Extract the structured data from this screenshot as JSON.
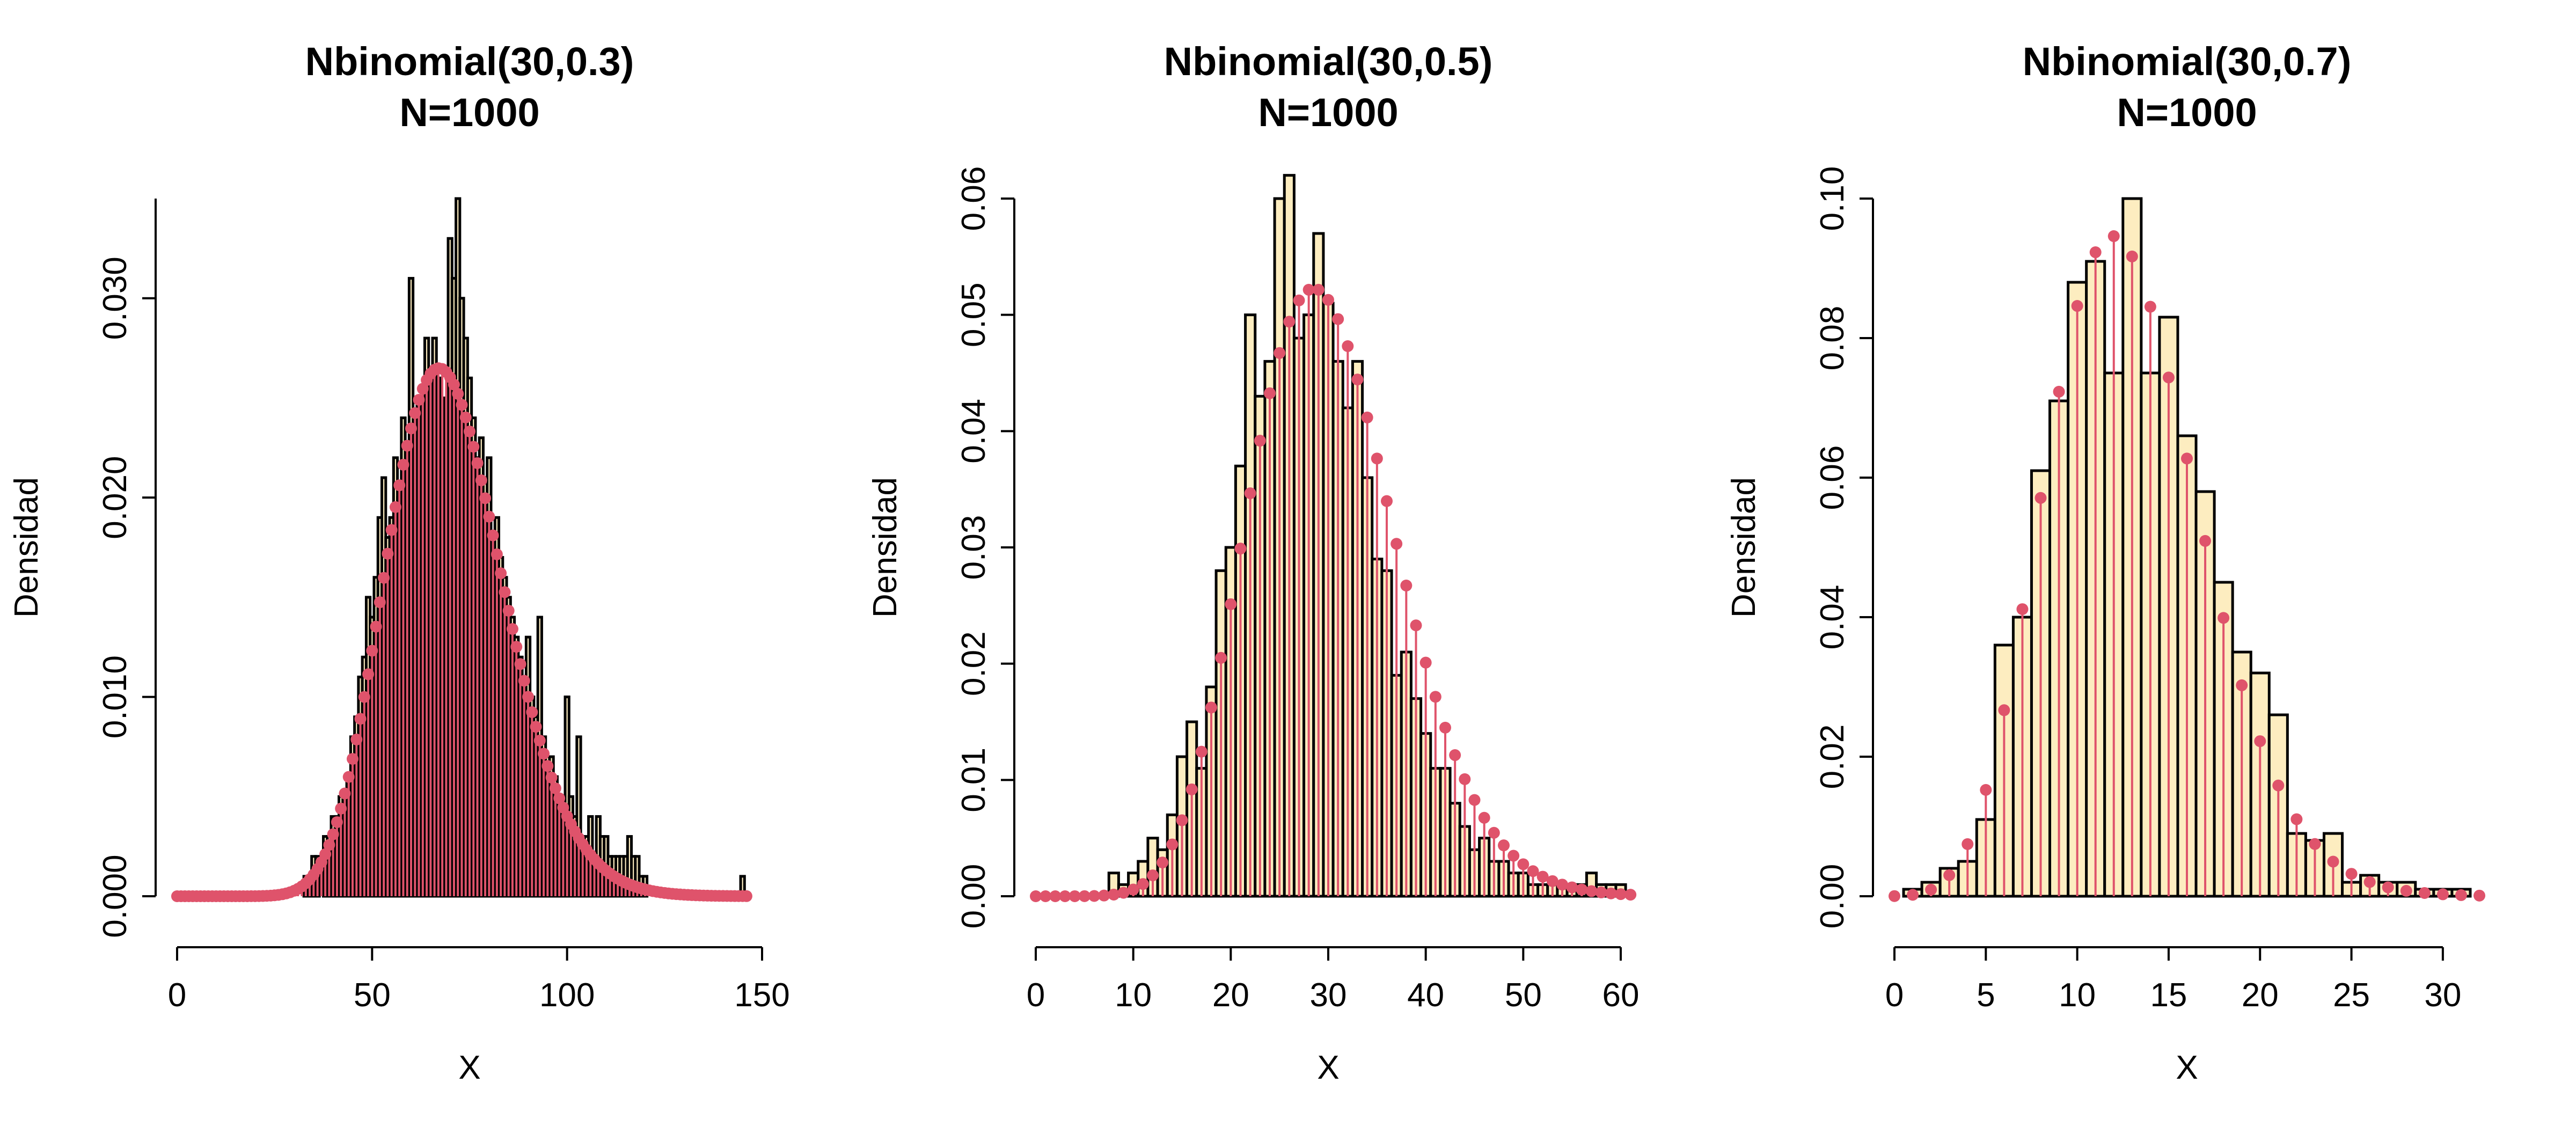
{
  "colors": {
    "bar_fill": "#fdedc0",
    "bar_stroke": "#000000",
    "theory": "#df536b",
    "background": "#ffffff"
  },
  "chart_data": [
    {
      "type": "bar",
      "title": [
        "Nbinomial(30,0.3)",
        "N=1000"
      ],
      "xlabel": "X",
      "ylabel": "Densidad",
      "xlim": [
        0,
        150
      ],
      "ylim": [
        0,
        0.035
      ],
      "xticks": [
        "0",
        "50",
        "100",
        "150"
      ],
      "yticks": [
        "0.000",
        "0.010",
        "0.020",
        "0.030"
      ],
      "series": [
        {
          "kind": "histogram",
          "bin_width": 1,
          "x": [
            33,
            34,
            35,
            36,
            38,
            39,
            40,
            41,
            42,
            43,
            44,
            45,
            46,
            47,
            48,
            49,
            50,
            51,
            52,
            53,
            54,
            55,
            56,
            57,
            58,
            59,
            60,
            61,
            62,
            63,
            64,
            65,
            66,
            67,
            68,
            69,
            70,
            71,
            72,
            73,
            74,
            75,
            76,
            77,
            78,
            79,
            80,
            81,
            82,
            83,
            84,
            85,
            86,
            87,
            88,
            89,
            90,
            91,
            92,
            93,
            94,
            95,
            96,
            97,
            98,
            99,
            100,
            101,
            102,
            103,
            104,
            105,
            106,
            107,
            108,
            109,
            110,
            111,
            112,
            113,
            114,
            115,
            116,
            117,
            118,
            119,
            120,
            145
          ],
          "values": [
            0.001,
            0.001,
            0.002,
            0.002,
            0.003,
            0.003,
            0.004,
            0.004,
            0.005,
            0.005,
            0.006,
            0.008,
            0.009,
            0.011,
            0.012,
            0.015,
            0.014,
            0.016,
            0.019,
            0.021,
            0.018,
            0.019,
            0.022,
            0.02,
            0.024,
            0.018,
            0.031,
            0.022,
            0.025,
            0.021,
            0.028,
            0.026,
            0.028,
            0.026,
            0.024,
            0.025,
            0.033,
            0.031,
            0.035,
            0.03,
            0.028,
            0.026,
            0.024,
            0.022,
            0.023,
            0.021,
            0.022,
            0.018,
            0.019,
            0.017,
            0.016,
            0.015,
            0.014,
            0.013,
            0.012,
            0.011,
            0.013,
            0.01,
            0.009,
            0.014,
            0.008,
            0.007,
            0.007,
            0.006,
            0.005,
            0.004,
            0.01,
            0.005,
            0.004,
            0.008,
            0.003,
            0.003,
            0.004,
            0.002,
            0.004,
            0.003,
            0.003,
            0.002,
            0.002,
            0.002,
            0.002,
            0.002,
            0.003,
            0.002,
            0.002,
            0.001,
            0.001,
            0.001
          ]
        },
        {
          "kind": "pmf",
          "name": "",
          "size": 30,
          "prob": 0.3,
          "xmin": 0,
          "xmax": 146
        }
      ]
    },
    {
      "type": "bar",
      "title": [
        "Nbinomial(30,0.5)",
        "N=1000"
      ],
      "xlabel": "X",
      "ylabel": "Densidad",
      "xlim": [
        0,
        60
      ],
      "ylim": [
        0,
        0.06
      ],
      "xticks": [
        "0",
        "10",
        "20",
        "30",
        "40",
        "50",
        "60"
      ],
      "yticks": [
        "0.00",
        "0.01",
        "0.02",
        "0.03",
        "0.04",
        "0.05",
        "0.06"
      ],
      "series": [
        {
          "kind": "histogram",
          "bin_width": 1,
          "x": [
            8,
            9,
            10,
            11,
            12,
            13,
            14,
            15,
            16,
            17,
            18,
            19,
            20,
            21,
            22,
            23,
            24,
            25,
            26,
            27,
            28,
            29,
            30,
            31,
            32,
            33,
            34,
            35,
            36,
            37,
            38,
            39,
            40,
            41,
            42,
            43,
            44,
            45,
            46,
            47,
            48,
            49,
            50,
            51,
            52,
            53,
            54,
            55,
            56,
            57,
            58,
            59,
            60
          ],
          "values": [
            0.002,
            0.001,
            0.002,
            0.003,
            0.005,
            0.004,
            0.007,
            0.012,
            0.015,
            0.011,
            0.018,
            0.028,
            0.03,
            0.037,
            0.05,
            0.043,
            0.046,
            0.06,
            0.062,
            0.048,
            0.05,
            0.057,
            0.051,
            0.046,
            0.042,
            0.046,
            0.036,
            0.029,
            0.028,
            0.019,
            0.021,
            0.017,
            0.014,
            0.011,
            0.011,
            0.008,
            0.006,
            0.004,
            0.005,
            0.003,
            0.003,
            0.002,
            0.002,
            0.001,
            0.001,
            0.001,
            0.001,
            0.001,
            0.001,
            0.002,
            0.001,
            0.001,
            0.001
          ]
        },
        {
          "kind": "pmf",
          "name": "",
          "size": 30,
          "prob": 0.5,
          "xmin": 0,
          "xmax": 61
        }
      ]
    },
    {
      "type": "bar",
      "title": [
        "Nbinomial(30,0.7)",
        "N=1000"
      ],
      "xlabel": "X",
      "ylabel": "Densidad",
      "xlim": [
        0,
        32
      ],
      "ylim": [
        0,
        0.1
      ],
      "xticks": [
        "0",
        "5",
        "10",
        "15",
        "20",
        "25",
        "30"
      ],
      "yticks": [
        "0.00",
        "0.02",
        "0.04",
        "0.06",
        "0.08",
        "0.10"
      ],
      "series": [
        {
          "kind": "histogram",
          "bin_width": 1,
          "x": [
            1,
            2,
            3,
            4,
            5,
            6,
            7,
            8,
            9,
            10,
            11,
            12,
            13,
            14,
            15,
            16,
            17,
            18,
            19,
            20,
            21,
            22,
            23,
            24,
            25,
            26,
            27,
            28,
            29,
            30,
            31
          ],
          "values": [
            0.001,
            0.002,
            0.004,
            0.005,
            0.011,
            0.036,
            0.04,
            0.061,
            0.071,
            0.088,
            0.091,
            0.075,
            0.1,
            0.075,
            0.083,
            0.066,
            0.058,
            0.045,
            0.035,
            0.032,
            0.026,
            0.009,
            0.008,
            0.009,
            0.002,
            0.003,
            0.002,
            0.002,
            0.001,
            0.001,
            0.001
          ]
        },
        {
          "kind": "pmf",
          "name": "",
          "size": 30,
          "prob": 0.7,
          "xmin": 0,
          "xmax": 32
        }
      ]
    }
  ]
}
